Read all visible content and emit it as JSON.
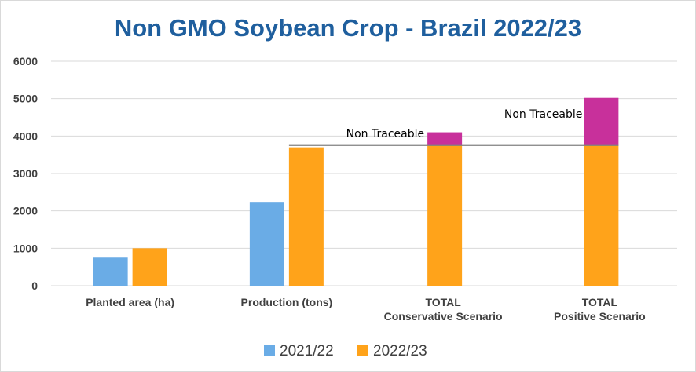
{
  "chart_data": {
    "type": "bar",
    "title": "Non GMO Soybean Crop - Brazil 2022/23",
    "categories": [
      [
        "Planted area (ha)"
      ],
      [
        "Production (tons)"
      ],
      [
        "TOTAL",
        "Conservative Scenario"
      ],
      [
        "TOTAL",
        "Positive Scenario"
      ]
    ],
    "series": [
      {
        "name": "2021/22",
        "color": "#6aace6",
        "values": [
          750,
          2220,
          null,
          null
        ]
      },
      {
        "name": "2022/23",
        "color": "#ffa31a",
        "values": [
          1000,
          3700,
          3750,
          3750
        ]
      }
    ],
    "stacked_extra": {
      "name": "Non Traceable",
      "color": "#c8309b",
      "values": [
        null,
        null,
        350,
        1270
      ]
    },
    "reference_line": {
      "value": 3750,
      "color": "#808080"
    },
    "annotations": [
      "Non Traceable",
      "Non Traceable"
    ],
    "yticks": [
      0,
      1000,
      2000,
      3000,
      4000,
      5000,
      6000
    ],
    "ylim": [
      0,
      6000
    ],
    "xlabel": "",
    "ylabel": "",
    "legend_position": "bottom"
  }
}
